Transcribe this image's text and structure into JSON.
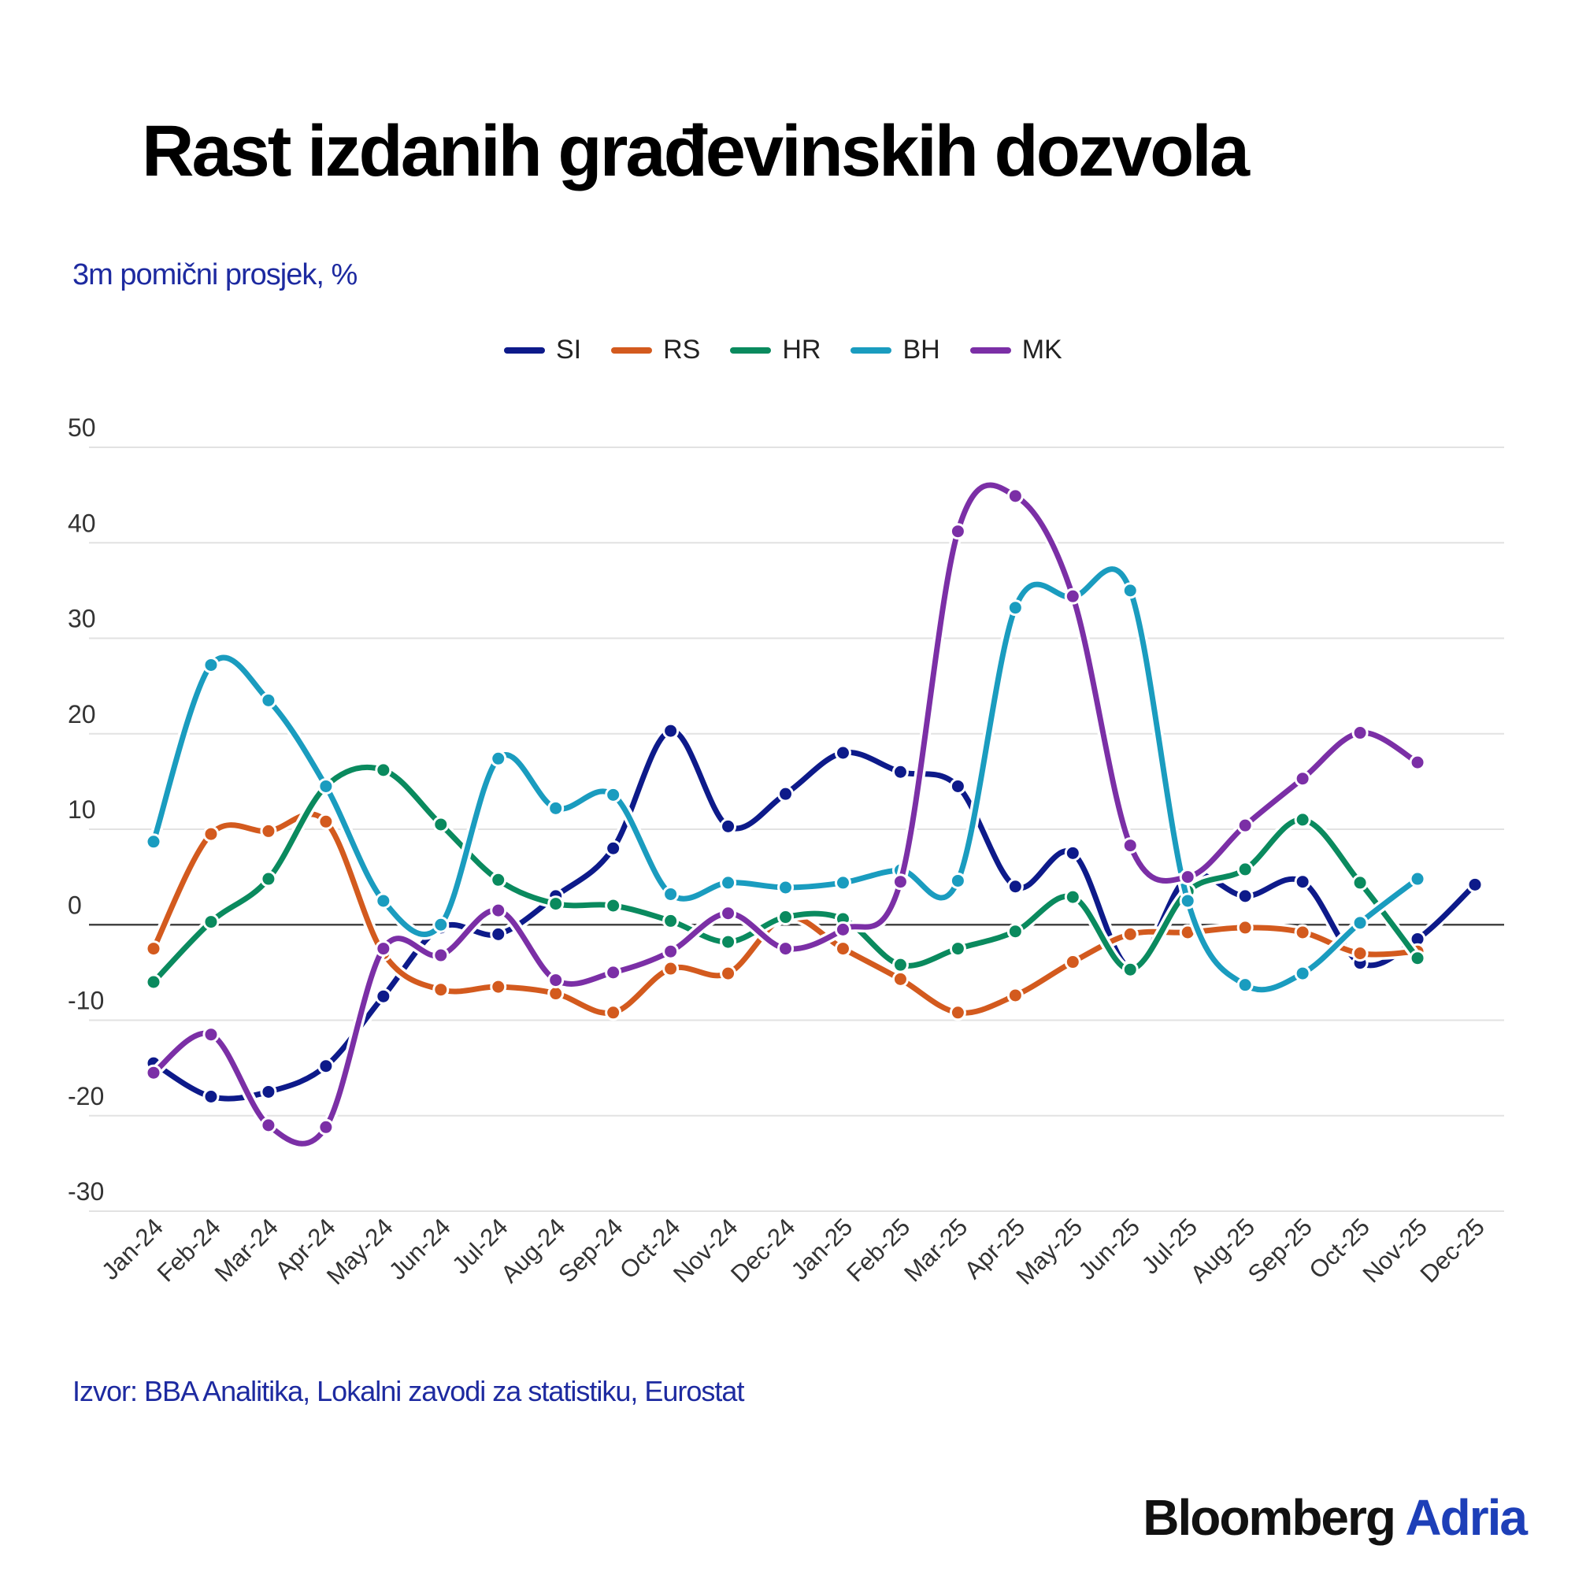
{
  "chart_data": {
    "type": "line",
    "title": "Rast izdanih građevinskih dozvola",
    "subtitle": "3m pomični prosjek, %",
    "source": "Izvor: BBA Analitika, Lokalni zavodi za statistiku, Eurostat",
    "xlabel": "",
    "ylabel": "",
    "ylim": [
      -30,
      50
    ],
    "yticks": [
      "50",
      "40",
      "30",
      "20",
      "10",
      "0",
      "-10",
      "-20",
      "-30"
    ],
    "ytick_values": [
      50,
      40,
      30,
      20,
      10,
      0,
      -10,
      -20,
      -30
    ],
    "grid": true,
    "legend_position": "top-center",
    "categories": [
      "Jan-24",
      "Feb-24",
      "Mar-24",
      "Apr-24",
      "May-24",
      "Jun-24",
      "Jul-24",
      "Aug-24",
      "Sep-24",
      "Oct-24",
      "Nov-24",
      "Dec-24",
      "Jan-25",
      "Feb-25",
      "Mar-25",
      "Apr-25",
      "May-25",
      "Jun-25",
      "Jul-25",
      "Aug-25",
      "Sep-25",
      "Oct-25",
      "Nov-25",
      "Dec-25"
    ],
    "series": [
      {
        "name": "SI",
        "color": "#0d1a8a",
        "values": [
          -14.5,
          -18,
          -17.5,
          -14.8,
          -7.5,
          -0.3,
          -1,
          3,
          8,
          20.3,
          10.3,
          13.7,
          18,
          16,
          14.5,
          4,
          7.5,
          -4.5,
          5,
          3,
          4.5,
          -4,
          -1.5,
          4.2
        ]
      },
      {
        "name": "RS",
        "color": "#d35a1e",
        "values": [
          -2.5,
          9.5,
          9.8,
          10.8,
          -3,
          -6.8,
          -6.5,
          -7.2,
          -9.2,
          -4.6,
          -5.1,
          0.8,
          -2.5,
          -5.7,
          -9.2,
          -7.4,
          -3.9,
          -1,
          -0.8,
          -0.3,
          -0.8,
          -3,
          -2.8,
          null
        ]
      },
      {
        "name": "HR",
        "color": "#0a8a5e",
        "values": [
          -6,
          0.3,
          4.8,
          14.5,
          16.2,
          10.5,
          4.7,
          2.2,
          2,
          0.4,
          -1.8,
          0.8,
          0.6,
          -4.2,
          -2.5,
          -0.7,
          2.9,
          -4.7,
          3.5,
          5.8,
          11,
          4.4,
          -3.5,
          null
        ]
      },
      {
        "name": "BH",
        "color": "#1a9cbf",
        "values": [
          8.7,
          27.2,
          23.5,
          14.5,
          2.5,
          0,
          17.4,
          12.2,
          13.6,
          3.2,
          4.4,
          3.9,
          4.4,
          5.7,
          4.6,
          33.2,
          34.3,
          35,
          2.5,
          -6.3,
          -5.1,
          0.2,
          4.8,
          null
        ]
      },
      {
        "name": "MK",
        "color": "#7b2fa6",
        "values": [
          -15.5,
          -11.5,
          -21,
          -21.2,
          -2.5,
          -3.2,
          1.5,
          -5.8,
          -5,
          -2.8,
          1.2,
          -2.5,
          -0.5,
          4.5,
          41.2,
          44.9,
          34.4,
          8.3,
          5,
          10.4,
          15.3,
          20.1,
          17,
          null
        ]
      }
    ]
  },
  "logo": {
    "part1": "Bloomberg",
    "part2": "Adria"
  }
}
